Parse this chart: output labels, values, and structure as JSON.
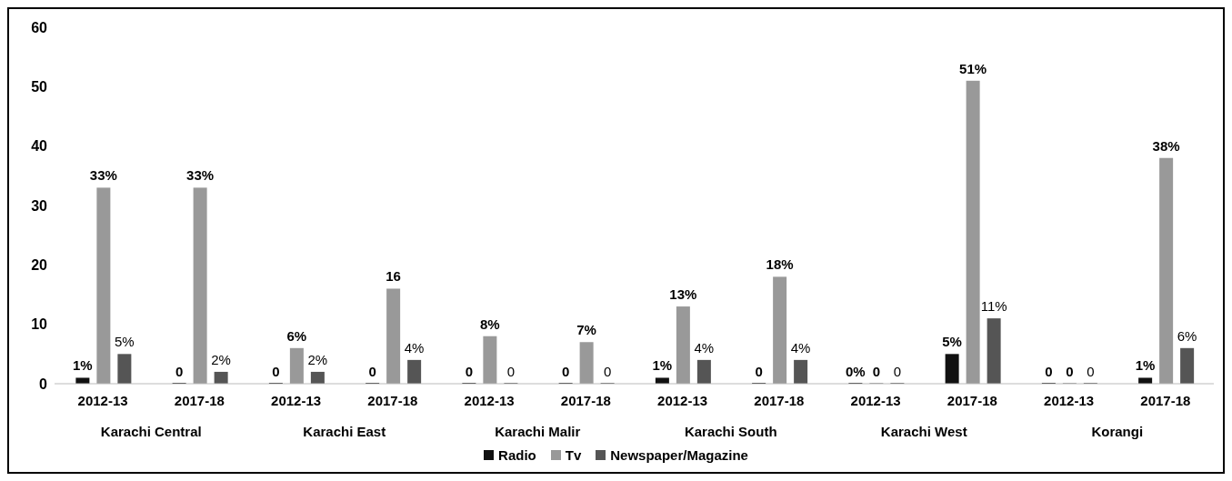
{
  "chart_data": {
    "type": "bar",
    "categories": [
      "2012-13",
      "2017-18",
      "2012-13",
      "2017-18",
      "2012-13",
      "2017-18",
      "2012-13",
      "2017-18",
      "2012-13",
      "2017-18",
      "2012-13",
      "2017-18"
    ],
    "annotations": [
      "Karachi Central",
      "Karachi East",
      "Karachi Malir",
      "Karachi South",
      "Karachi West",
      "Korangi"
    ],
    "series": [
      {
        "name": "Radio",
        "color": "#111111",
        "values": [
          1,
          0,
          0,
          0,
          0,
          0,
          1,
          0,
          0,
          5,
          0,
          1
        ],
        "value_labels": [
          "1%",
          "0",
          "0",
          "0",
          "0",
          "0",
          "1%",
          "0",
          "0%",
          "5%",
          "0",
          "1%"
        ]
      },
      {
        "name": "Tv",
        "color": "#999999",
        "values": [
          33,
          33,
          6,
          16,
          8,
          7,
          13,
          18,
          0,
          51,
          0,
          38
        ],
        "value_labels": [
          "33%",
          "33%",
          "6%",
          "16",
          "8%",
          "7%",
          "13%",
          "18%",
          "0",
          "51%",
          "0",
          "38%"
        ]
      },
      {
        "name": "Newspaper/Magazine",
        "color": "#555555",
        "values": [
          5,
          2,
          2,
          4,
          0,
          0,
          4,
          4,
          0,
          11,
          0,
          6
        ],
        "value_labels": [
          "5%",
          "2%",
          "2%",
          "4%",
          "0",
          "0",
          "4%",
          "4%",
          "0",
          "11%",
          "0",
          "6%"
        ]
      }
    ],
    "ylim": [
      0,
      60
    ],
    "yticks": [
      0,
      10,
      20,
      30,
      40,
      50,
      60
    ],
    "grid": false,
    "legend": "bottom"
  }
}
